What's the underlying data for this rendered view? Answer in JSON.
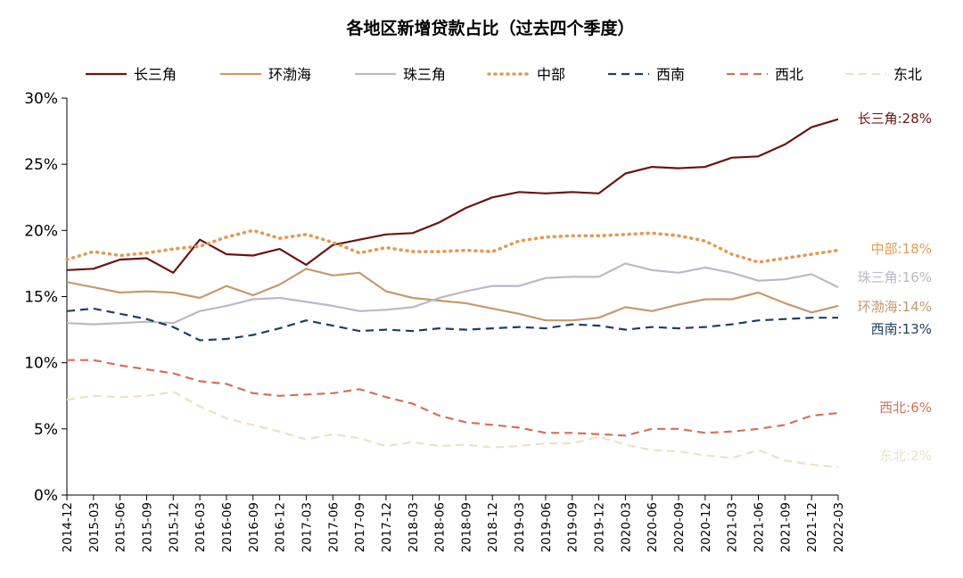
{
  "chart_data": {
    "type": "line",
    "title": "各地区新增贷款占比（过去四个季度）",
    "xlabel": "",
    "ylabel": "",
    "ylim": [
      0,
      30
    ],
    "yticks": [
      "0%",
      "5%",
      "10%",
      "15%",
      "20%",
      "25%",
      "30%"
    ],
    "legend_position": "top",
    "grid": false,
    "x": [
      "2014-12",
      "2015-03",
      "2015-06",
      "2015-09",
      "2015-12",
      "2016-03",
      "2016-06",
      "2016-09",
      "2016-12",
      "2017-03",
      "2017-06",
      "2017-09",
      "2017-12",
      "2018-03",
      "2018-06",
      "2018-09",
      "2018-12",
      "2019-03",
      "2019-06",
      "2019-09",
      "2019-12",
      "2020-03",
      "2020-06",
      "2020-09",
      "2020-12",
      "2021-03",
      "2021-06",
      "2021-09",
      "2021-12",
      "2022-03"
    ],
    "series": [
      {
        "name": "长三角",
        "color": "#6b1414",
        "style": "solid",
        "end_label": "长三角:28%",
        "values": [
          17.0,
          17.1,
          17.8,
          17.9,
          16.8,
          19.3,
          18.2,
          18.1,
          18.6,
          17.4,
          18.9,
          19.3,
          19.7,
          19.8,
          20.6,
          21.7,
          22.5,
          22.9,
          22.8,
          22.9,
          22.8,
          24.3,
          24.8,
          24.7,
          24.8,
          25.5,
          25.6,
          26.5,
          27.8,
          28.4
        ]
      },
      {
        "name": "环渤海",
        "color": "#c49a6c",
        "style": "solid",
        "end_label": "环渤海:14%",
        "values": [
          16.1,
          15.7,
          15.3,
          15.4,
          15.3,
          14.9,
          15.8,
          15.1,
          15.9,
          17.1,
          16.6,
          16.8,
          15.4,
          14.9,
          14.7,
          14.5,
          14.1,
          13.7,
          13.2,
          13.2,
          13.4,
          14.2,
          13.9,
          14.4,
          14.8,
          14.8,
          15.3,
          14.5,
          13.8,
          14.3
        ]
      },
      {
        "name": "珠三角",
        "color": "#b9b9c9",
        "style": "solid",
        "end_label": "珠三角:16%",
        "values": [
          13.0,
          12.9,
          13.0,
          13.1,
          13.0,
          13.9,
          14.3,
          14.8,
          14.9,
          14.6,
          14.3,
          13.9,
          14.0,
          14.2,
          14.9,
          15.4,
          15.8,
          15.8,
          16.4,
          16.5,
          16.5,
          17.5,
          17.0,
          16.8,
          17.2,
          16.8,
          16.2,
          16.3,
          16.7,
          15.7
        ]
      },
      {
        "name": "中部",
        "color": "#e29b55",
        "style": "dotted",
        "end_label": "中部:18%",
        "values": [
          17.8,
          18.4,
          18.1,
          18.3,
          18.6,
          18.8,
          19.5,
          20.0,
          19.4,
          19.7,
          19.1,
          18.3,
          18.7,
          18.4,
          18.4,
          18.5,
          18.4,
          19.2,
          19.5,
          19.6,
          19.6,
          19.7,
          19.8,
          19.6,
          19.2,
          18.2,
          17.6,
          17.9,
          18.2,
          18.5
        ]
      },
      {
        "name": "西南",
        "color": "#1f3e66",
        "style": "dashed",
        "end_label": "西南:13%",
        "values": [
          13.9,
          14.1,
          13.7,
          13.3,
          12.7,
          11.7,
          11.8,
          12.1,
          12.6,
          13.2,
          12.8,
          12.4,
          12.5,
          12.4,
          12.6,
          12.5,
          12.6,
          12.7,
          12.6,
          12.9,
          12.8,
          12.5,
          12.7,
          12.6,
          12.7,
          12.9,
          13.2,
          13.3,
          13.4,
          13.4
        ]
      },
      {
        "name": "西北",
        "color": "#d27158",
        "style": "dashed",
        "end_label": "西北:6%",
        "values": [
          10.2,
          10.2,
          9.8,
          9.5,
          9.2,
          8.6,
          8.4,
          7.7,
          7.5,
          7.6,
          7.7,
          8.0,
          7.4,
          6.9,
          6.0,
          5.5,
          5.3,
          5.1,
          4.7,
          4.7,
          4.6,
          4.5,
          5.0,
          5.0,
          4.7,
          4.8,
          5.0,
          5.3,
          6.0,
          6.2
        ]
      },
      {
        "name": "东北",
        "color": "#ece1c3",
        "style": "dashed",
        "end_label": "东北:2%",
        "values": [
          7.2,
          7.5,
          7.4,
          7.5,
          7.8,
          6.7,
          5.8,
          5.3,
          4.8,
          4.2,
          4.6,
          4.3,
          3.7,
          4.0,
          3.7,
          3.8,
          3.6,
          3.7,
          3.9,
          3.9,
          4.4,
          3.8,
          3.4,
          3.3,
          3.0,
          2.8,
          3.4,
          2.6,
          2.3,
          2.1
        ]
      }
    ]
  }
}
